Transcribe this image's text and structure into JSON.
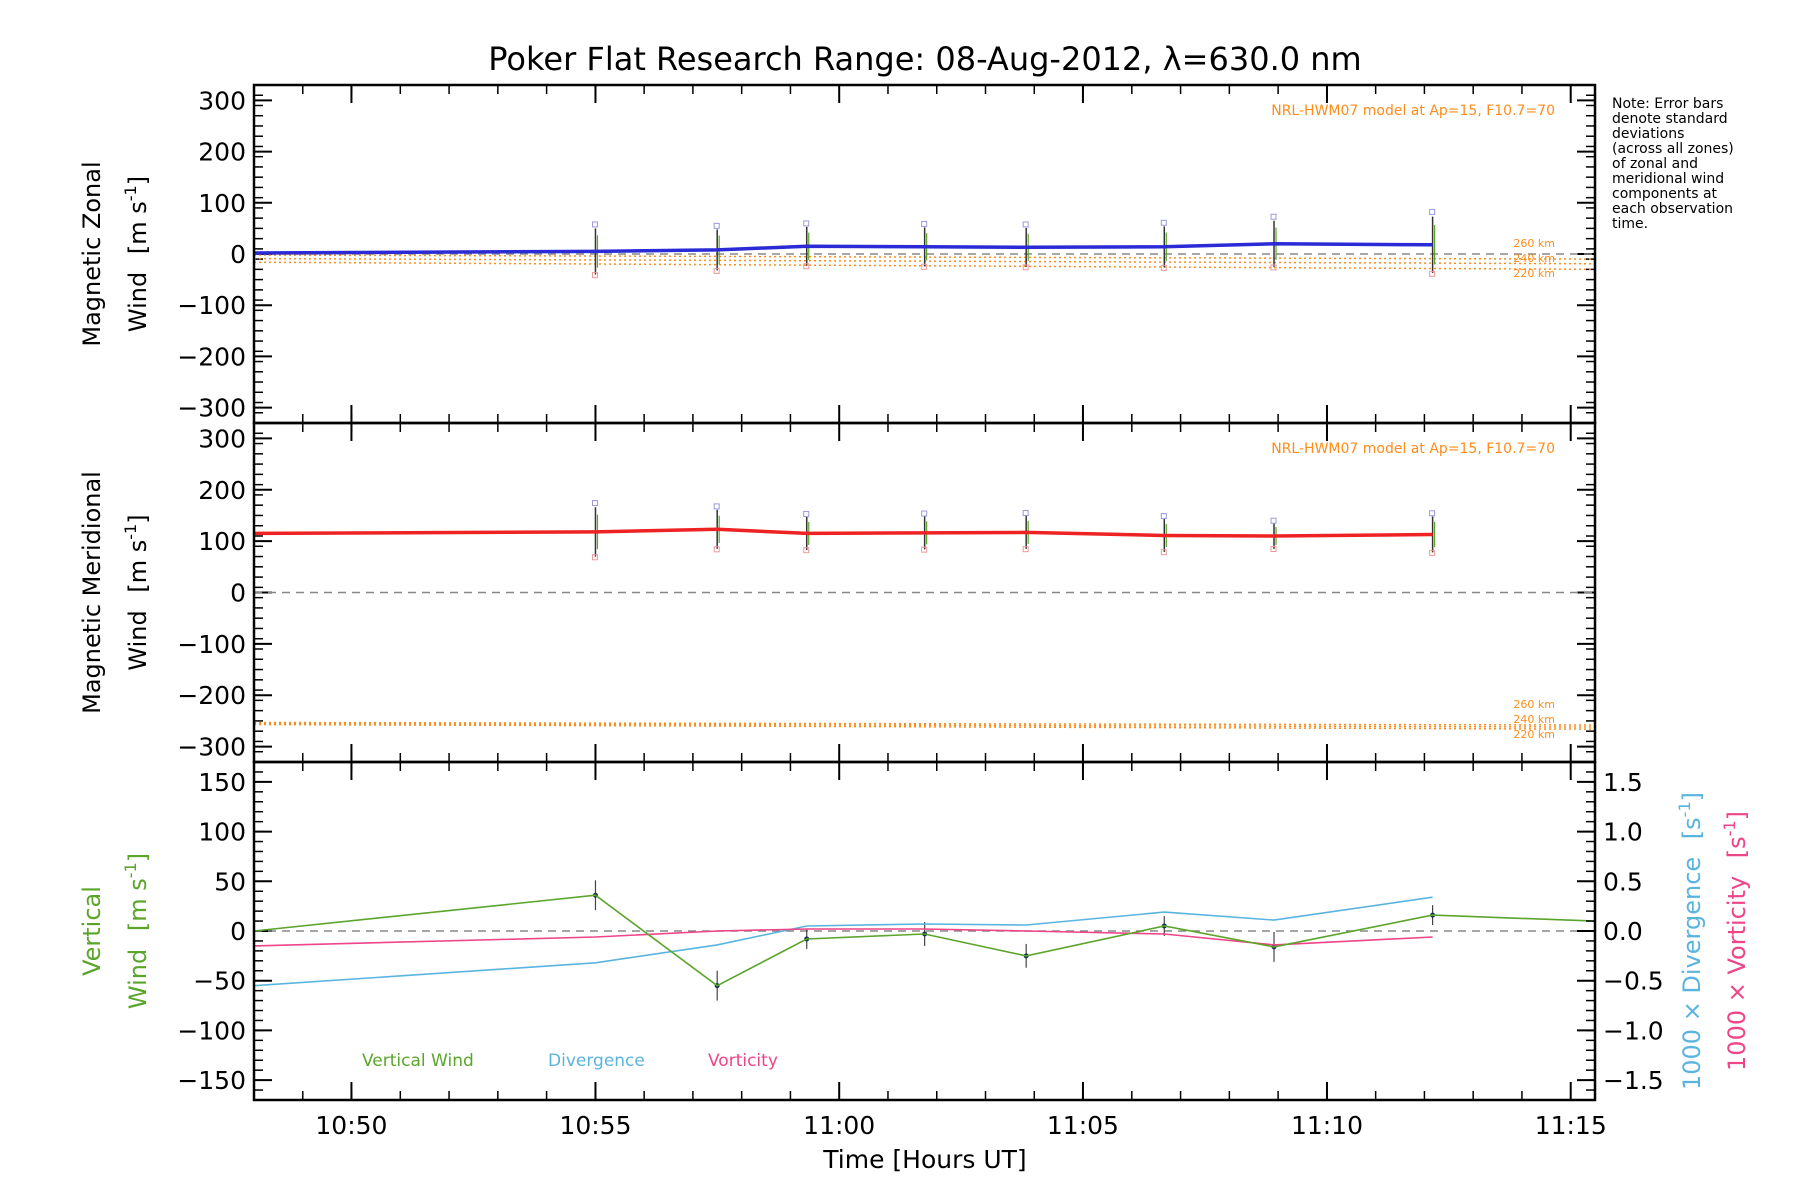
{
  "colors": {
    "zonal": "#2a2ad6",
    "meridional": "#ee2222",
    "vertical": "#5aa52a",
    "divergence": "#5ab4e0",
    "vorticity": "#ee4488",
    "model": "#ff8c1a",
    "zero_line": "#888888"
  },
  "chart_data": [
    {
      "type": "line",
      "title": "Poker Flat Research Range: 08-Aug-2012, λ=630.0 nm",
      "ylabel_line1": "Magnetic Zonal",
      "ylabel_line2_prefix": "Wind",
      "ylabel_unit": "[m s",
      "ylabel_exp": "-1",
      "ylabel_close": "]",
      "ylim": [
        -330,
        330
      ],
      "yticks": [
        -300,
        -200,
        -100,
        0,
        100,
        200,
        300
      ],
      "xlim": [
        10.8,
        11.2583
      ],
      "model_note": "NRL-HWM07 model at Ap=15, F10.7=70",
      "model_altitudes": [
        "260 km",
        "240 km",
        "220 km"
      ],
      "series": [
        {
          "x": [
            10.8,
            10.9167,
            10.9583,
            10.9889,
            11.0292,
            11.0639,
            11.1111,
            11.1486,
            11.2028
          ],
          "y": [
            2,
            5,
            8,
            15,
            14,
            13,
            14,
            20,
            18
          ],
          "err": [
            0,
            45,
            40,
            38,
            38,
            38,
            40,
            45,
            55
          ]
        }
      ],
      "model_series": [
        {
          "name": "260 km",
          "x": [
            10.8,
            11.2583
          ],
          "y": [
            -2,
            -10
          ]
        },
        {
          "name": "240 km",
          "x": [
            10.8,
            11.2583
          ],
          "y": [
            -9,
            -19
          ]
        },
        {
          "name": "220 km",
          "x": [
            10.8,
            11.2583
          ],
          "y": [
            -16,
            -30
          ]
        }
      ]
    },
    {
      "type": "line",
      "ylabel_line1": "Magnetic Meridional",
      "ylabel_line2_prefix": "Wind",
      "ylabel_unit": "[m s",
      "ylabel_exp": "-1",
      "ylabel_close": "]",
      "ylim": [
        -330,
        330
      ],
      "yticks": [
        -300,
        -200,
        -100,
        0,
        100,
        200,
        300
      ],
      "xlim": [
        10.8,
        11.2583
      ],
      "model_note": "NRL-HWM07 model at Ap=15, F10.7=70",
      "model_altitudes": [
        "260 km",
        "240 km",
        "220 km"
      ],
      "series": [
        {
          "x": [
            10.8,
            10.9167,
            10.9583,
            10.9889,
            11.0292,
            11.0639,
            11.1111,
            11.1486,
            11.2028
          ],
          "y": [
            115,
            118,
            123,
            115,
            116,
            117,
            111,
            110,
            113
          ],
          "err": [
            0,
            48,
            38,
            32,
            32,
            32,
            32,
            25,
            35
          ]
        }
      ],
      "model_series": [
        {
          "name": "260 km",
          "x": [
            10.8,
            11.2583
          ],
          "y": [
            -253,
            -258
          ]
        },
        {
          "name": "240 km",
          "x": [
            10.8,
            11.2583
          ],
          "y": [
            -255,
            -262
          ]
        },
        {
          "name": "220 km",
          "x": [
            10.8,
            11.2583
          ],
          "y": [
            -257,
            -266
          ]
        }
      ]
    },
    {
      "type": "line",
      "ylabel_line1": "Vertical",
      "ylabel_line2_prefix": "Wind",
      "ylabel_unit": "[m s",
      "ylabel_exp": "-1",
      "ylabel_close": "]",
      "ylim": [
        -170,
        170
      ],
      "yticks": [
        -150,
        -100,
        -50,
        0,
        50,
        100,
        150
      ],
      "right_ylim": [
        -1.7,
        1.7
      ],
      "right_yticks": [
        -1.5,
        -1.0,
        -0.5,
        0.0,
        0.5,
        1.0,
        1.5
      ],
      "right_label_div": "1000 × Divergence",
      "right_label_vort": "1000 × Vorticity",
      "right_unit": "[s",
      "right_exp": "-1",
      "right_close": "]",
      "xlim": [
        10.8,
        11.2583
      ],
      "xticks": [
        10.8333,
        10.9167,
        11.0,
        11.0833,
        11.1667,
        11.25
      ],
      "xticklabels": [
        "10:50",
        "10:55",
        "11:00",
        "11:05",
        "11:10",
        "11:15"
      ],
      "xlabel": "Time [Hours UT]",
      "legend": [
        "Vertical Wind",
        "Divergence",
        "Vorticity"
      ],
      "series": [
        {
          "name": "Vertical Wind",
          "x": [
            10.8,
            10.9167,
            10.9583,
            10.9889,
            11.0292,
            11.0639,
            11.1111,
            11.1486,
            11.2028,
            11.2583
          ],
          "y": [
            0,
            36,
            -55,
            -8,
            -3,
            -25,
            5,
            -16,
            16,
            10
          ],
          "err": [
            0,
            15,
            15,
            10,
            12,
            12,
            10,
            15,
            10,
            0
          ]
        },
        {
          "name": "Divergence",
          "x": [
            10.8,
            10.9167,
            10.9583,
            10.9889,
            11.0292,
            11.0639,
            11.1111,
            11.1486,
            11.2028
          ],
          "y": [
            -0.55,
            -0.32,
            -0.14,
            0.05,
            0.07,
            0.06,
            0.19,
            0.11,
            0.34
          ]
        },
        {
          "name": "Vorticity",
          "x": [
            10.8,
            10.9167,
            10.9583,
            10.9889,
            11.0292,
            11.0639,
            11.1111,
            11.1486,
            11.2028
          ],
          "y": [
            -0.15,
            -0.06,
            0.0,
            0.02,
            0.02,
            0.0,
            -0.03,
            -0.14,
            -0.06
          ]
        }
      ]
    }
  ],
  "side_note": [
    "Note: Error bars",
    "denote standard",
    "deviations",
    "(across all zones)",
    "of zonal and",
    "meridional wind",
    "components at",
    "each observation",
    "time."
  ]
}
